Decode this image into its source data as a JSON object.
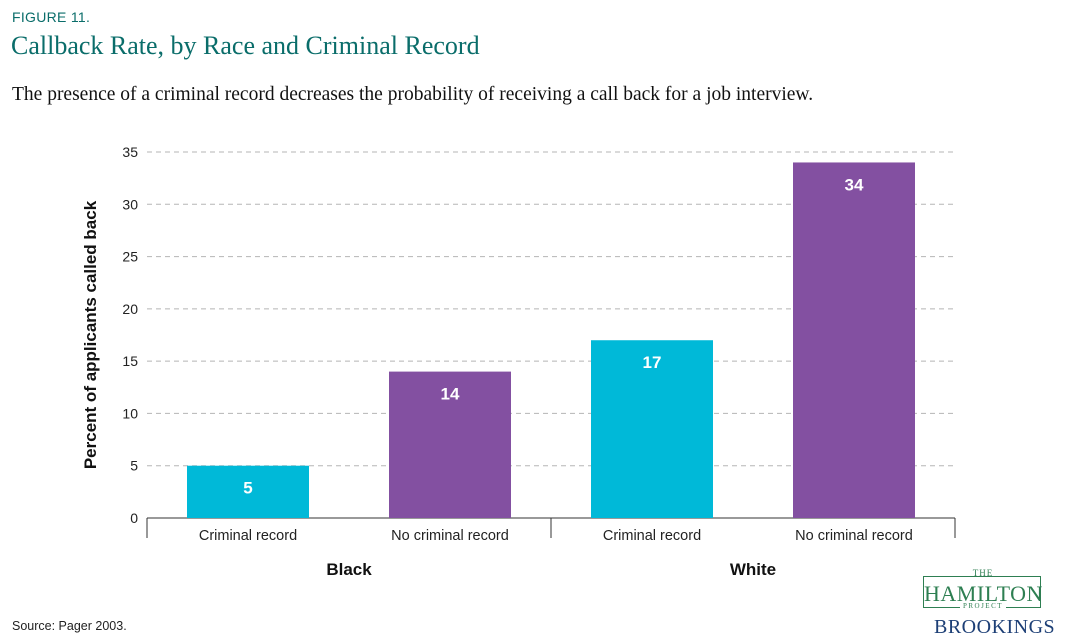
{
  "figure_label": "FIGURE 11.",
  "source": "Source: Pager 2003.",
  "logo": {
    "the": "THE",
    "hamilton": "HAMILTON",
    "project": "PROJECT",
    "brookings": "BROOKINGS"
  },
  "colors": {
    "criminal_record": "#00b9d8",
    "no_criminal_record": "#8350a1",
    "title": "#0a6d6a"
  },
  "chart_data": {
    "type": "bar",
    "title": "Callback Rate, by Race and Criminal Record",
    "subtitle": "The presence of a criminal record decreases the probability of receiving a call back for a job interview.",
    "ylabel": "Percent of applicants called back",
    "xlabel": "",
    "ylim": [
      0,
      35
    ],
    "yticks": [
      0,
      5,
      10,
      15,
      20,
      25,
      30,
      35
    ],
    "grid": true,
    "groups": [
      {
        "name": "Black",
        "bars": [
          {
            "category": "Criminal record",
            "value": 5
          },
          {
            "category": "No criminal record",
            "value": 14
          }
        ]
      },
      {
        "name": "White",
        "bars": [
          {
            "category": "Criminal record",
            "value": 17
          },
          {
            "category": "No criminal record",
            "value": 34
          }
        ]
      }
    ]
  }
}
